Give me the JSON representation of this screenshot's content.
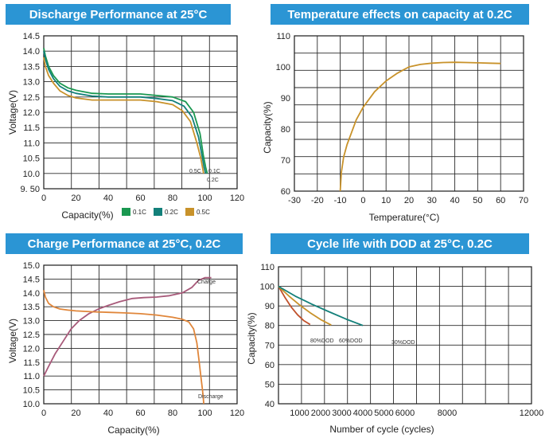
{
  "chart_data": [
    {
      "type": "line",
      "title": "Discharge Performance at 25°C",
      "xlabel": "Capacity(%)",
      "ylabel": "Voltage(V)",
      "xlim": [
        0,
        120
      ],
      "ylim": [
        9.5,
        14.5
      ],
      "xticks": [
        "0",
        "20",
        "40",
        "60",
        "80",
        "100",
        "120"
      ],
      "yticks": [
        "9. 50",
        "10.0",
        "10.5",
        "11.0",
        "11.5",
        "12.0",
        "12.5",
        "13.0",
        "13.5",
        "14.0",
        "14.5"
      ],
      "legend": [
        {
          "label": "0.1C",
          "color": "#1a9850"
        },
        {
          "label": "0.2C",
          "color": "#13807a"
        },
        {
          "label": "0.5C",
          "color": "#c8922a"
        }
      ],
      "annotations": [
        "0.5C",
        "0.1C",
        "0.2C"
      ],
      "grid": true,
      "series": [
        {
          "name": "0.1C",
          "color": "#1a9850",
          "x": [
            0,
            1,
            3,
            6,
            10,
            15,
            20,
            30,
            40,
            50,
            60,
            70,
            80,
            88,
            93,
            97,
            99,
            100.5,
            101.5
          ],
          "y": [
            14.1,
            13.85,
            13.5,
            13.2,
            12.95,
            12.8,
            12.72,
            12.62,
            12.6,
            12.6,
            12.6,
            12.55,
            12.5,
            12.35,
            12.0,
            11.3,
            10.6,
            10.2,
            10.0
          ]
        },
        {
          "name": "0.2C",
          "color": "#13807a",
          "x": [
            0,
            1,
            3,
            6,
            10,
            15,
            20,
            30,
            40,
            50,
            60,
            70,
            80,
            87,
            92,
            96,
            98.5,
            99.5,
            100.5
          ],
          "y": [
            14.0,
            13.75,
            13.4,
            13.1,
            12.85,
            12.7,
            12.62,
            12.53,
            12.5,
            12.5,
            12.5,
            12.45,
            12.38,
            12.2,
            11.85,
            11.2,
            10.5,
            10.2,
            10.0
          ]
        },
        {
          "name": "0.5C",
          "color": "#c8922a",
          "x": [
            0,
            1,
            3,
            6,
            10,
            15,
            20,
            30,
            40,
            50,
            60,
            70,
            80,
            86,
            91,
            95,
            97.5,
            98.5,
            99.2
          ],
          "y": [
            13.8,
            13.5,
            13.2,
            12.95,
            12.7,
            12.55,
            12.47,
            12.4,
            12.4,
            12.4,
            12.4,
            12.35,
            12.25,
            12.05,
            11.7,
            11.0,
            10.5,
            10.2,
            10.0
          ]
        }
      ]
    },
    {
      "type": "line",
      "title": "Temperature effects on capacity at  0.2C",
      "xlabel": "Temperature(°C)",
      "ylabel": "Capacity(%)",
      "xlim": [
        -30,
        70
      ],
      "ylim": [
        60,
        110
      ],
      "xticks": [
        "-30",
        "-20",
        "-10",
        "0",
        "10",
        "20",
        "30",
        "40",
        "50",
        "60",
        "70"
      ],
      "yticks": [
        "60",
        "70",
        "80",
        "90",
        "100",
        "110"
      ],
      "grid": true,
      "series": [
        {
          "name": "",
          "color": "#c8922a",
          "x": [
            -10,
            -9.5,
            -8.5,
            -7,
            -5,
            -3,
            0,
            5,
            10,
            15,
            20,
            25,
            30,
            35,
            40,
            45,
            50,
            55,
            60
          ],
          "y": [
            60,
            66,
            71,
            75,
            79,
            83,
            87,
            92,
            95.5,
            98,
            100,
            100.8,
            101.2,
            101.4,
            101.5,
            101.4,
            101.3,
            101.2,
            101.1
          ]
        }
      ]
    },
    {
      "type": "line",
      "title": "Charge Performance at 25°C, 0.2C",
      "xlabel": "Capacity(%)",
      "ylabel": "Voltage(V)",
      "xlim": [
        0,
        120
      ],
      "ylim": [
        10.0,
        15.0
      ],
      "xticks": [
        "0",
        "20",
        "40",
        "60",
        "80",
        "100",
        "120"
      ],
      "yticks": [
        "10.0",
        "10.5",
        "11.0",
        "11.5",
        "12.0",
        "12.5",
        "13.0",
        "13.5",
        "14.0",
        "14.5",
        "15.0"
      ],
      "annotations": [
        "Charge",
        "Discharge"
      ],
      "grid": true,
      "series": [
        {
          "name": "Charge",
          "color": "#a85a7a",
          "x": [
            0,
            3,
            7,
            12,
            17,
            22,
            28,
            34,
            40,
            47,
            55,
            62,
            70,
            78,
            86,
            92,
            96,
            100,
            104
          ],
          "y": [
            11.0,
            11.35,
            11.8,
            12.25,
            12.7,
            13.0,
            13.25,
            13.42,
            13.55,
            13.68,
            13.8,
            13.83,
            13.85,
            13.9,
            14.0,
            14.2,
            14.45,
            14.55,
            14.55
          ]
        },
        {
          "name": "Discharge",
          "color": "#e0863a",
          "x": [
            0,
            1,
            3,
            6,
            10,
            15,
            20,
            30,
            40,
            50,
            60,
            70,
            80,
            86,
            90,
            93,
            95,
            96.5,
            97.5,
            98.5,
            99,
            99.3
          ],
          "y": [
            14.1,
            13.85,
            13.62,
            13.5,
            13.42,
            13.38,
            13.35,
            13.32,
            13.3,
            13.28,
            13.25,
            13.2,
            13.12,
            13.05,
            12.95,
            12.7,
            12.2,
            11.5,
            11.0,
            10.5,
            10.2,
            10.0
          ]
        }
      ]
    },
    {
      "type": "line",
      "title": "Cycle life with DOD at 25°C, 0.2C",
      "xlabel": "Number of cycle (cycles)",
      "ylabel": "Capacity(%)",
      "xlim": [
        0,
        12000
      ],
      "ylim": [
        40,
        110
      ],
      "xticks": [
        "1000",
        "2000",
        "3000",
        "4000",
        "5000",
        "6000",
        "8000",
        "12000"
      ],
      "yticks": [
        "40",
        "50",
        "60",
        "70",
        "80",
        "90",
        "100",
        "110"
      ],
      "annotations": [
        "80%DOD",
        "60%DOD",
        "30%DOD"
      ],
      "grid": true,
      "series": [
        {
          "name": "80%DOD",
          "color": "#c0502a",
          "x": [
            0,
            300,
            600,
            900,
            1200,
            1500
          ],
          "y": [
            100,
            94.5,
            89.5,
            85.5,
            82.5,
            80.5
          ]
        },
        {
          "name": "60%DOD",
          "color": "#c8922a",
          "x": [
            0,
            500,
            1000,
            1500,
            2000,
            2500
          ],
          "y": [
            100,
            95,
            90.5,
            86.5,
            83,
            80.2
          ]
        },
        {
          "name": "30%DOD",
          "color": "#13807a",
          "x": [
            0,
            800,
            1600,
            2400,
            3200,
            4000
          ],
          "y": [
            100,
            95,
            90.8,
            87,
            83.3,
            80
          ]
        }
      ]
    }
  ]
}
